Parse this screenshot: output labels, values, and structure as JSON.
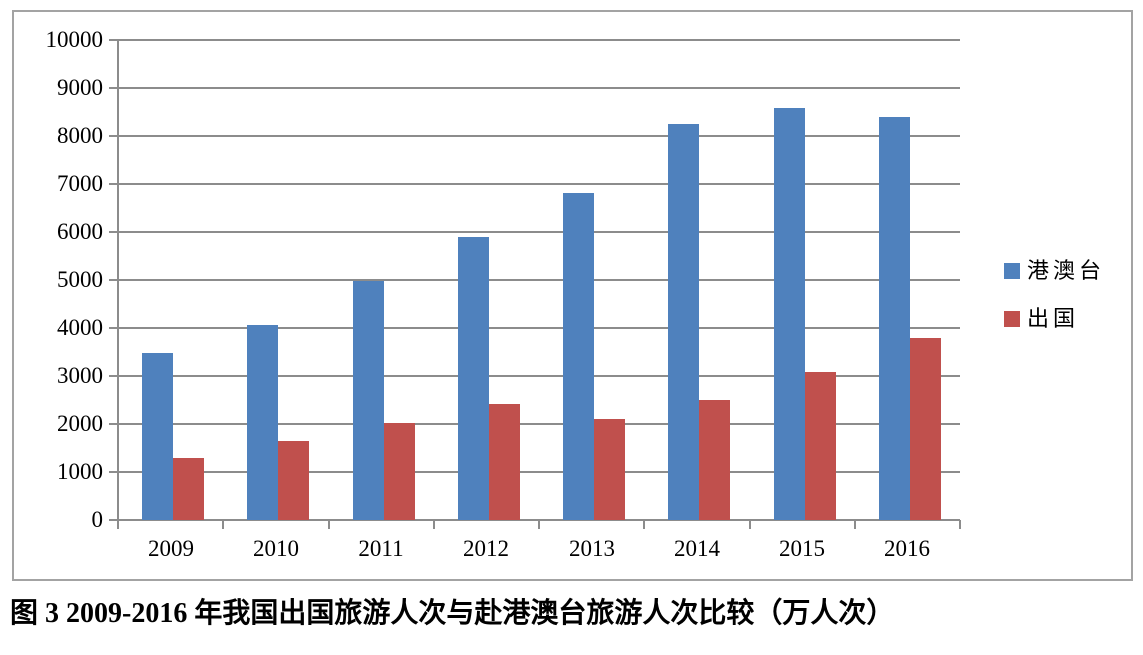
{
  "chart_data": {
    "type": "bar",
    "title": "",
    "caption": "图 3 2009-2016 年我国出国旅游人次与赴港澳台旅游人次比较（万人次）",
    "categories": [
      "2009",
      "2010",
      "2011",
      "2012",
      "2013",
      "2014",
      "2015",
      "2016"
    ],
    "series": [
      {
        "name": "港澳台",
        "color": "#4f81bd",
        "values": [
          3470,
          4060,
          4980,
          5890,
          6820,
          8240,
          8590,
          8400
        ]
      },
      {
        "name": "出国",
        "color": "#c0504d",
        "values": [
          1290,
          1640,
          2020,
          2410,
          2100,
          2490,
          3090,
          3800
        ]
      }
    ],
    "xlabel": "",
    "ylabel": "",
    "ylim": [
      0,
      10000
    ],
    "y_ticks": [
      0,
      1000,
      2000,
      3000,
      4000,
      5000,
      6000,
      7000,
      8000,
      9000,
      10000
    ],
    "grid": "horizontal",
    "legend_position": "right"
  },
  "colors": {
    "grid": "#8c8c8c",
    "frame": "#a3a3a3",
    "bar_blue": "#4f81bd",
    "bar_red": "#c0504d",
    "text": "#000000",
    "background": "#ffffff"
  }
}
